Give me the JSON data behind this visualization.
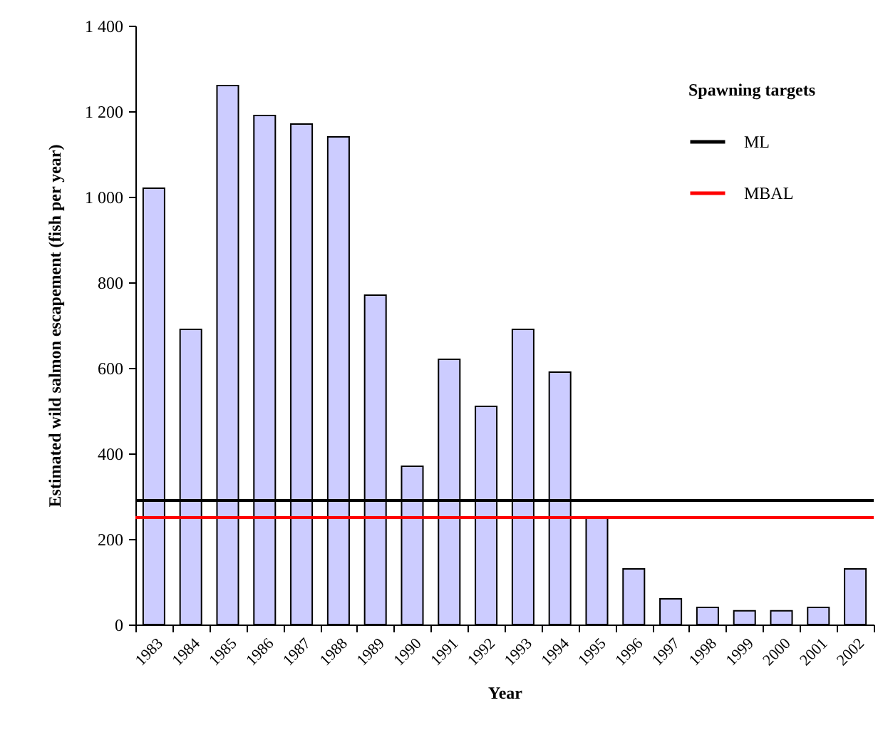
{
  "chart_data": {
    "type": "bar",
    "xlabel": "Year",
    "ylabel": "Estimated wild salmon escapement (fish per year)",
    "legend_title": "Spawning targets",
    "categories": [
      "1983",
      "1984",
      "1985",
      "1986",
      "1987",
      "1988",
      "1989",
      "1990",
      "1991",
      "1992",
      "1993",
      "1994",
      "1995",
      "1996",
      "1997",
      "1998",
      "1999",
      "2000",
      "2001",
      "2002"
    ],
    "values": [
      1020,
      690,
      1260,
      1190,
      1170,
      1140,
      770,
      370,
      620,
      510,
      690,
      590,
      250,
      130,
      60,
      40,
      32,
      32,
      40,
      130
    ],
    "color": "#ccccff",
    "ylim": [
      0,
      1400
    ],
    "yticks": [
      0,
      200,
      400,
      600,
      800,
      {
        "value": 1000,
        "label": "1 000"
      },
      {
        "value": 1200,
        "label": "1 200"
      },
      {
        "value": 1400,
        "label": "1 400"
      }
    ],
    "ref_lines": [
      {
        "axis": "y",
        "value": 290,
        "label": "ML",
        "color": "#000000"
      },
      {
        "axis": "y",
        "value": 250,
        "label": "MBAL",
        "color": "#ff0000"
      }
    ],
    "legend": "top right",
    "grid": false
  }
}
